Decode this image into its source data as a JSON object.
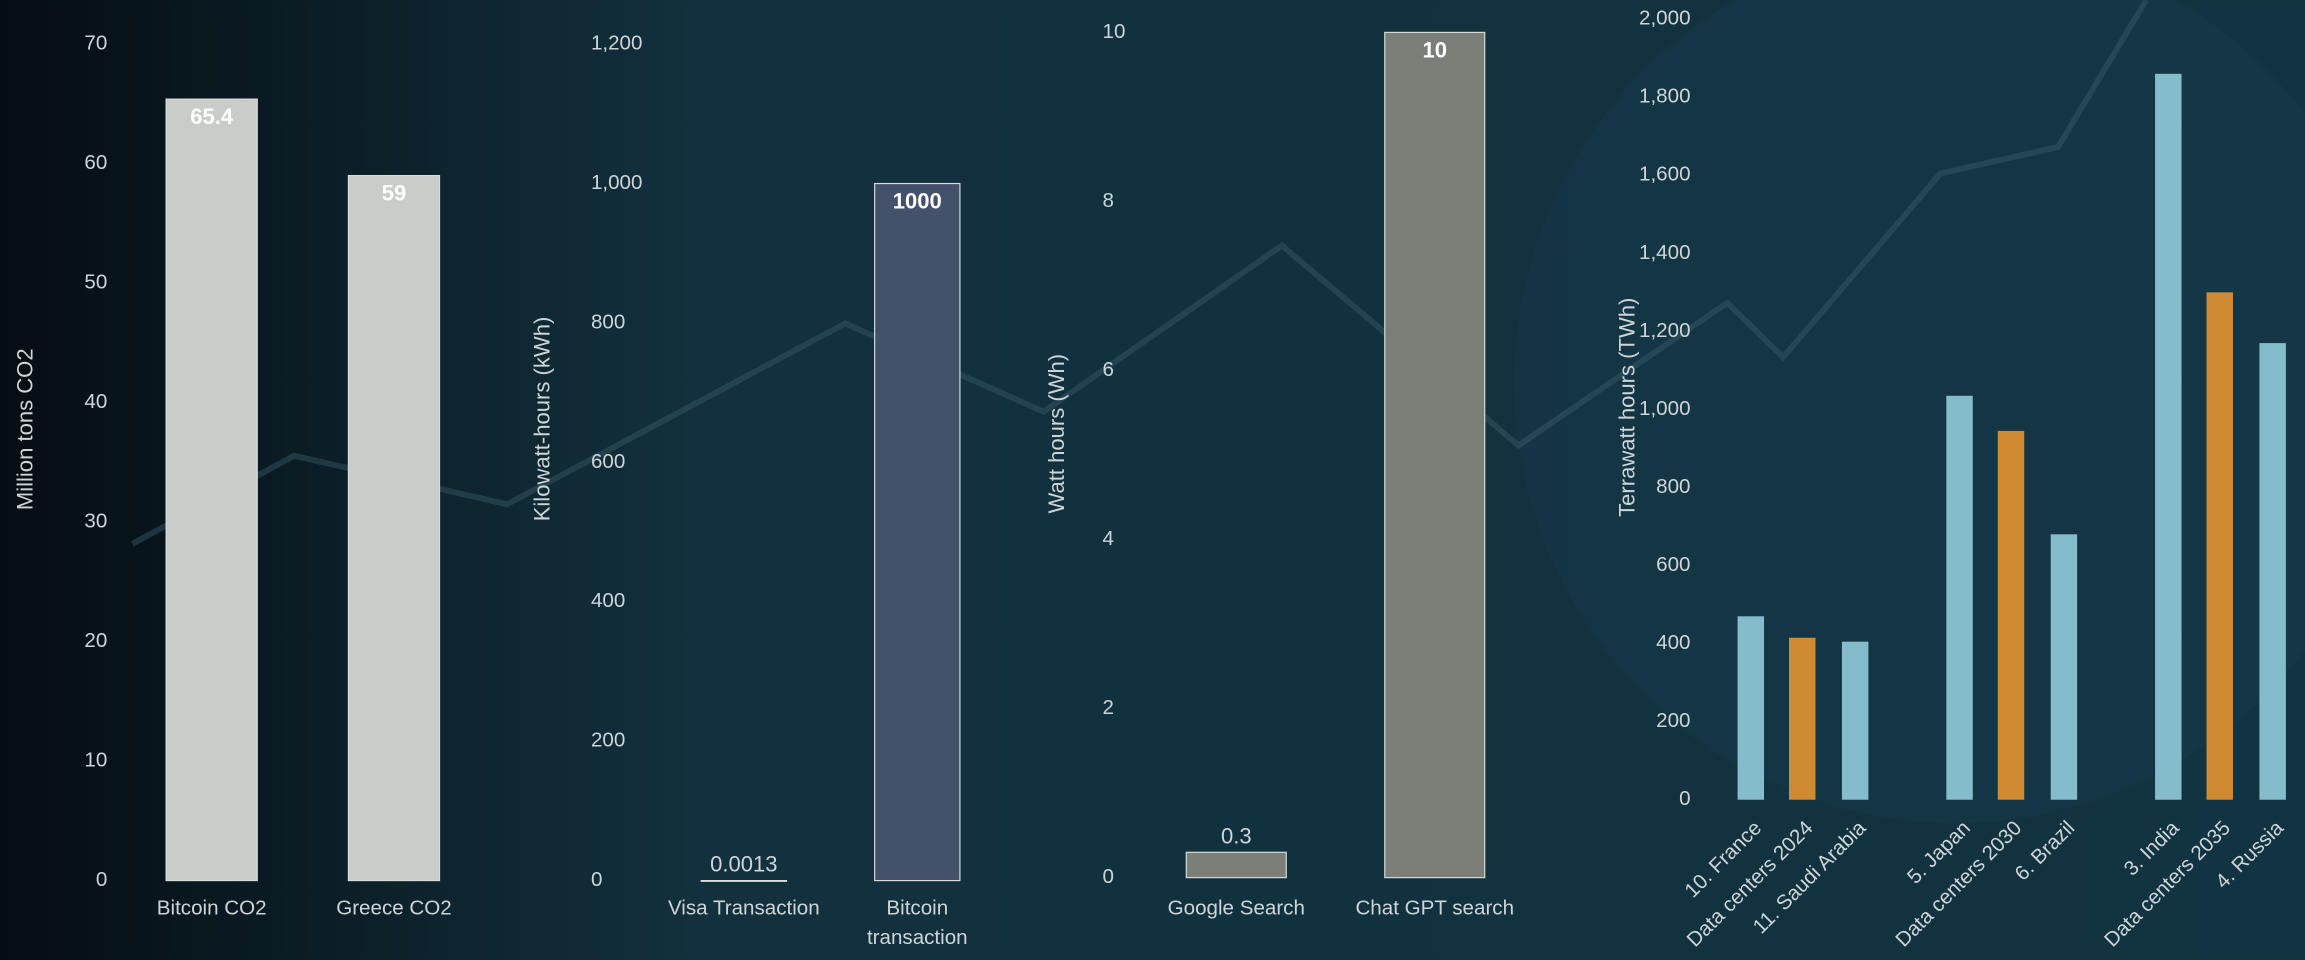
{
  "chart_data": [
    {
      "type": "bar",
      "ylabel": "Million tons CO2",
      "categories": [
        "Bitcoin CO2",
        "Greece CO2"
      ],
      "values": [
        65.4,
        59
      ],
      "colors": [
        "#c9ccc8",
        "#c9ccc8"
      ],
      "ylim": [
        0,
        70
      ],
      "yticks": [
        0,
        10,
        20,
        30,
        40,
        50,
        60,
        70
      ]
    },
    {
      "type": "bar",
      "ylabel": "Kilowatt-hours (kWh)",
      "categories": [
        "Visa Transaction",
        "Bitcoin transaction"
      ],
      "values": [
        0.0013,
        1000
      ],
      "colors": [
        "#44516a",
        "#44516a"
      ],
      "ylim": [
        0,
        1200
      ],
      "yticks": [
        0,
        200,
        400,
        600,
        800,
        {
          "value": 1000,
          "label": "1,000"
        },
        {
          "value": 1200,
          "label": "1,200"
        }
      ]
    },
    {
      "type": "bar",
      "ylabel": "Watt hours (Wh)",
      "categories": [
        "Google Search",
        "Chat GPT search"
      ],
      "values": [
        0.3,
        10
      ],
      "colors": [
        "#7a7f78",
        "#7a7f78"
      ],
      "ylim": [
        0,
        10
      ],
      "yticks": [
        0,
        2,
        4,
        6,
        8,
        10
      ]
    },
    {
      "type": "bar",
      "ylabel": "Terrawatt hours (TWh)",
      "categories": [
        "10. France",
        "Data centers 2024",
        "11. Saudi Arabia",
        "5. Japan",
        "Data centers 2030",
        "6. Brazil",
        "3. India",
        "Data centers 2035",
        "4. Russia"
      ],
      "values": [
        470,
        415,
        405,
        1035,
        945,
        680,
        1860,
        1300,
        1170
      ],
      "colors": [
        "#85bccb",
        "#d08a32",
        "#85bccb",
        "#85bccb",
        "#d08a32",
        "#85bccb",
        "#85bccb",
        "#d08a32",
        "#85bccb"
      ],
      "ylim": [
        0,
        2000
      ],
      "yticks": [
        0,
        {
          "value": 200,
          "label": "200"
        },
        400,
        600,
        800,
        {
          "value": 1000,
          "label": "1,000"
        },
        {
          "value": 1200,
          "label": "1,200"
        },
        {
          "value": 1400,
          "label": "1,400"
        },
        {
          "value": 1600,
          "label": "1,600"
        },
        {
          "value": 1800,
          "label": "1,800"
        },
        {
          "value": 2000,
          "label": "2,000"
        }
      ]
    }
  ]
}
